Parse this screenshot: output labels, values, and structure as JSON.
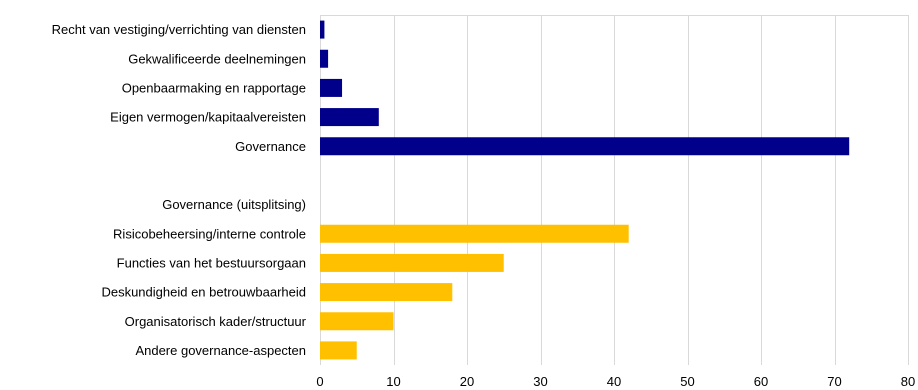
{
  "chart_data": {
    "type": "bar",
    "orientation": "horizontal",
    "grid": true,
    "xlim": [
      0,
      80
    ],
    "xticks": [
      0,
      10,
      20,
      30,
      40,
      50,
      60,
      70,
      80
    ],
    "categories": [
      "Recht van vestiging/verrichting van diensten",
      "Gekwalificeerde deelnemingen",
      "Openbaarmaking en rapportage",
      "Eigen vermogen/kapitaalvereisten",
      "Governance",
      "",
      "Governance (uitsplitsing)",
      "Risicobeheersing/interne controle",
      "Functies van het bestuursorgaan",
      "Deskundigheid en betrouwbaarheid",
      "Organisatorisch kader/structuur",
      "Andere governance-aspecten"
    ],
    "values": [
      0.6,
      1.1,
      3,
      8,
      72,
      null,
      null,
      42,
      25,
      18,
      10,
      5
    ],
    "bar_colors": [
      "#00008b",
      "#00008b",
      "#00008b",
      "#00008b",
      "#00008b",
      "",
      "",
      "#ffc000",
      "#ffc000",
      "#ffc000",
      "#ffc000",
      "#ffc000"
    ]
  },
  "colors": {
    "primary": "#00008b",
    "secondary": "#ffc000",
    "grid": "#d9d9d9"
  }
}
